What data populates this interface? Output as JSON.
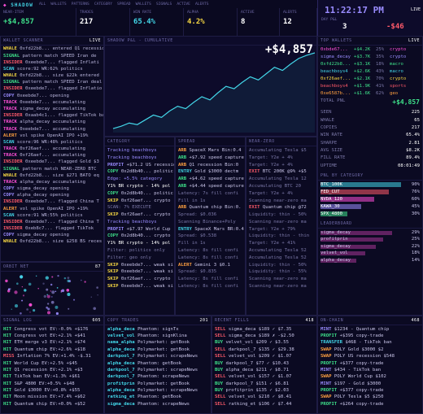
{
  "topbar": {
    "title": "SHADOW",
    "tabs": [
      "ALL",
      "WALLETS",
      "PATTERNS",
      "CATEGORY",
      "SPREAD",
      "WALLETS",
      "SIGNALS",
      "ACTIVE",
      "ALERTS"
    ],
    "stats": [
      {
        "label": "NEAR-ITEM",
        "value": "+$4,857",
        "cls": "g"
      },
      {
        "label": "TRADES",
        "value": "217",
        "cls": "w"
      },
      {
        "label": "WIN RATE",
        "value": "65.4%",
        "cls": "c"
      },
      {
        "label": "ALPHA",
        "value": "4.2%",
        "cls": "y"
      },
      {
        "label": "ACTIVE",
        "value": "8",
        "cls": "w"
      },
      {
        "label": "ALERTS",
        "value": "12",
        "cls": "w"
      }
    ],
    "clock": "11:22:17 PM",
    "clock_tag": "LIVE",
    "daylabel": "DAY P&L",
    "day_count": "3",
    "day_value": "-$46"
  },
  "feed": {
    "title": "WALLET SCANNER",
    "tag": "LIVE",
    "rows": [
      [
        "WHALE",
        "y",
        "0xfd22b8... entered Q1 recession"
      ],
      [
        "SIGNAL",
        "g",
        "pattern match SPEED Iran de"
      ],
      [
        "INSIDER",
        "r",
        "0xeebde7... flagged Inflati"
      ],
      [
        "SCAN",
        "c",
        "score:92 WR:62% politics"
      ],
      [
        "WHALE",
        "y",
        "0xfd22b8... size $22k entered"
      ],
      [
        "SIGNAL",
        "g",
        "pattern match SPEED Iran deal"
      ],
      [
        "INSIDER",
        "r",
        "0xeebde7... flagged Inflatio"
      ],
      [
        "COPY",
        "p",
        "0xeebde7... opening"
      ],
      [
        "TRACK",
        "m",
        "0xeebde7... accumulating"
      ],
      [
        "TRACK",
        "m",
        "sigma_decay accumulating"
      ],
      [
        "INSIDER",
        "r",
        "0xaab4c1... flagged TikTok ban"
      ],
      [
        "TRACK",
        "m",
        "alpha_decay accumulating"
      ],
      [
        "TRACK",
        "m",
        "0xeebde7... accumulating"
      ],
      [
        "ALERT",
        "o",
        "vol spike OpenAI IPO +19%"
      ],
      [
        "SCAN",
        "c",
        "score:96 WR:48% politics"
      ],
      [
        "TRACK",
        "m",
        "0xf26aef... accumulating"
      ],
      [
        "TRACK",
        "m",
        "0xf26aef... accumulating"
      ],
      [
        "INSIDER",
        "r",
        "0xeebde7... flagged Gold $3"
      ],
      [
        "SIGNAL",
        "g",
        "pattern match NEAR-ZERO BTC"
      ],
      [
        "WHALE",
        "y",
        "0xfd22b8... size $271 BATO eq"
      ],
      [
        "TRACK",
        "m",
        "alpha_decay accumulating"
      ],
      [
        "COPY",
        "p",
        "sigma_decay opening"
      ],
      [
        "COPY",
        "p",
        "alpha_decay opening"
      ],
      [
        "INSIDER",
        "r",
        "0xeebde7... flagged China T"
      ],
      [
        "ALERT",
        "o",
        "vol spike OpenAI IPO +19%"
      ],
      [
        "SCAN",
        "c",
        "score:91 WR:55% politics"
      ],
      [
        "INSIDER",
        "r",
        "0xeebde7... flagged China T"
      ],
      [
        "INSIDER",
        "r",
        "0xeb8c7... flagged TikTok"
      ],
      [
        "COPY",
        "p",
        "sigma_decay opening"
      ],
      [
        "WHALE",
        "y",
        "0xfd22b8... size $258 BS reces"
      ]
    ]
  },
  "chart": {
    "title": "SHADOW P&L - CUMULATIVE",
    "value": "+$4,857",
    "points": [
      5,
      8,
      12,
      10,
      16,
      22,
      19,
      27,
      33,
      30,
      38,
      45,
      41,
      50,
      58,
      55,
      63,
      70,
      66,
      74,
      82,
      78,
      86,
      93,
      97,
      100
    ]
  },
  "cols": [
    {
      "title": "CATEGORY",
      "rows": [
        [
          "",
          "Tracking beachboys",
          "spk"
        ],
        [
          "",
          "Tracking beachboys",
          "spk"
        ],
        [
          "PROFIT",
          "+$71.2 US recession",
          "p"
        ],
        [
          "COPY",
          "0x2d8b40... politic",
          "g"
        ],
        [
          "",
          "Edge: +5.5% category",
          "sp"
        ],
        [
          "",
          "Y1% BR crypto - 14% pol",
          "w"
        ],
        [
          "COPY",
          "0x2d8b40... politic",
          "g"
        ],
        [
          "SKIP",
          "0xf26aef... crypto",
          "y"
        ],
        [
          "",
          "SCAN: 7% EXECUTE",
          "d"
        ],
        [
          "SKIP",
          "0xf26aef... crypto",
          "y"
        ],
        [
          "",
          "Tracking beachboys",
          "spk"
        ],
        [
          "PROFIT",
          "+$7.97 World Cup",
          "p"
        ],
        [
          "COPY",
          "0x2d8b40... crypto",
          "g"
        ],
        [
          "",
          "Y1% BR crypto - 14% pol",
          "w"
        ],
        [
          "",
          "Filter: politics only",
          "d"
        ],
        [
          "",
          "Filter: geo only",
          "d"
        ],
        [
          "SKIP",
          "0xeebde7... weak si",
          "y"
        ],
        [
          "SKIP",
          "0xeebde7... weak si",
          "y"
        ],
        [
          "SKIP",
          "0xf26aef... crypto",
          "y"
        ],
        [
          "SKIP",
          "0xeebde7... weak si",
          "y"
        ]
      ]
    },
    {
      "title": "SPREAD",
      "rows": [
        [
          "ARB",
          "SpaceX Mars Bin:0.4",
          "o"
        ],
        [
          "ARB",
          "+$7.92 speed capture",
          "g"
        ],
        [
          "ARB",
          "Q1 recession Bin:0",
          "o"
        ],
        [
          "ENTRY",
          "Gold $3000 dectm",
          "c"
        ],
        [
          "ARB",
          "+$4.62 speed capture",
          "g"
        ],
        [
          "ARB",
          "+$4.44 speed capture",
          "g"
        ],
        [
          "",
          "Latency: 7s fill confi",
          "d"
        ],
        [
          "",
          "Fill in 1s",
          "d"
        ],
        [
          "ARB",
          "Quantum chip Bin:0.",
          "o"
        ],
        [
          "",
          "Spread: $0.036",
          "d"
        ],
        [
          "",
          "Scanning Binance+Poly",
          "d"
        ],
        [
          "ENTRY",
          "SpaceX Mars BR:0.4",
          "c"
        ],
        [
          "",
          "Spread: $0.538",
          "d"
        ],
        [
          "",
          "Fill in 1s",
          "d"
        ],
        [
          "",
          "Latency: 8s fill confi",
          "d"
        ],
        [
          "",
          "Latency: 8s fill confi",
          "d"
        ],
        [
          "ALERT",
          "Gemini 3 $0.1",
          "o"
        ],
        [
          "",
          "Spread: $0.835",
          "d"
        ],
        [
          "",
          "Latency: 8s fill confi",
          "d"
        ],
        [
          "",
          "Latency: 8s fill confi",
          "d"
        ]
      ]
    },
    {
      "title": "NEAR-ZERO",
      "rows": [
        [
          "",
          "Accumulating Tesla $5",
          "d"
        ],
        [
          "",
          "Target: Y2e + 4%",
          "d"
        ],
        [
          "",
          "Target: Y2e + 4%",
          "d"
        ],
        [
          "EXIT",
          "BTC 200K @9% +$5",
          "r"
        ],
        [
          "",
          "Accumulating Tesla 12",
          "d"
        ],
        [
          "",
          "Accumulating BTC 20",
          "d"
        ],
        [
          "",
          "Target: Y2e + 4%",
          "d"
        ],
        [
          "",
          "Scanning near-zero ma",
          "d"
        ],
        [
          "EXIT",
          "Quantum chip @72",
          "r"
        ],
        [
          "",
          "Liquidity: thin - 50%",
          "d"
        ],
        [
          "",
          "Scanning near-zero ma",
          "d"
        ],
        [
          "",
          "Target: Y2e + 79%",
          "d"
        ],
        [
          "",
          "Liquidity: thin - thin",
          "d"
        ],
        [
          "",
          "Target: Y2e + 41%",
          "d"
        ],
        [
          "",
          "Accumulating Tesla 52",
          "d"
        ],
        [
          "",
          "Accumulating Tesla 52",
          "d"
        ],
        [
          "",
          "Liquidity: thin - 50%",
          "d"
        ],
        [
          "",
          "Liquidity: thin - 55%",
          "d"
        ],
        [
          "",
          "Scanning near-zero ma",
          "d"
        ],
        [
          "",
          "Scanning near-zero ma",
          "d"
        ]
      ]
    }
  ],
  "rp": {
    "title": "TOP WALLETS",
    "tag": "LIVE",
    "wallets": [
      [
        "0xbde67...",
        "+$4.2K",
        "25%",
        "crypto",
        "#ff4fd8"
      ],
      [
        "sigma_decay",
        "+$3.7K",
        "35%",
        "crypto",
        "#9a8cff"
      ],
      [
        "0xfd22b8...",
        "+$3.1K",
        "18%",
        "macro",
        "#3ee08a"
      ],
      [
        "beachboys4",
        "+$2.6K",
        "43%",
        "macro",
        "#43d6e8"
      ],
      [
        "0xf26aef...",
        "+$2.1K",
        "70%",
        "crypto",
        "#f6d743"
      ],
      [
        "beachboys4",
        "+$1.9K",
        "41%",
        "sports",
        "#ff5a6a"
      ],
      [
        "0xe6587b...",
        "+$1.6K",
        "62%",
        "geo",
        "#ffa040"
      ]
    ],
    "total_label": "TOTAL PNL",
    "total": "+$4,857",
    "stats": [
      [
        "SEEN",
        "225"
      ],
      [
        "WHALE",
        "65"
      ],
      [
        "COPIES",
        "217"
      ],
      [
        "WIN RATE",
        "65.4%"
      ],
      [
        "SHARPE",
        "2.81"
      ],
      [
        "AVG SIZE",
        "$8.2K"
      ],
      [
        "FILL RATE",
        "89.4%"
      ],
      [
        "UPTIME",
        "08:01:49"
      ]
    ],
    "cat_title": "PNL BY CATEGORY",
    "cats": [
      [
        "BTC_100K",
        "90%",
        "0.90",
        "#43d6e8"
      ],
      [
        "FED_CUT",
        "76%",
        "0.76",
        "#ff5a6a"
      ],
      [
        "NVDA_120",
        "60%",
        "0.60",
        "#ff4fd8"
      ],
      [
        "KAWA_30",
        "45%",
        "0.45",
        "#9a8cff"
      ],
      [
        "SPX_4800",
        "30%",
        "0.30",
        "#3ee08a"
      ]
    ],
    "lead_title": "LEADERBOARD",
    "leaders": [
      [
        "sigma_decay",
        "29%",
        "0.80"
      ],
      [
        "profitprin",
        "25%",
        "0.70"
      ],
      [
        "sigma_decay",
        "22%",
        "0.62"
      ],
      [
        "velvet_vol",
        "18%",
        "0.50"
      ],
      [
        "alpha_decay",
        "14%",
        "0.40"
      ]
    ]
  },
  "orb": {
    "title": "ORBIT NET",
    "tag": "87"
  },
  "bottom": [
    {
      "title": "SIGNAL LOG",
      "tag": "605",
      "rows": [
        [
          "HIT",
          "Congress vot EV:-0.0% +$176",
          "g"
        ],
        [
          "HIT",
          "Congress vot EV:+2.1% +$41",
          "g"
        ],
        [
          "HIT",
          "ETH merge v3 EV:+2.1% +$74",
          "g"
        ],
        [
          "HIT",
          "Quantum chip EV:+2.6% +$18",
          "g"
        ],
        [
          "MISS",
          "Inflation 7% EV:+1.4% -$.31",
          "r"
        ],
        [
          "HIT",
          "World Cup EV:+2.5% +$45",
          "g"
        ],
        [
          "HIT",
          "Q1 recession EV:+2.1% +$3",
          "g"
        ],
        [
          "HIT",
          "TikTok ban EV:+1.3% +$61",
          "g"
        ],
        [
          "HIT",
          "S&P 4800 EV:+0.5% +$48",
          "g"
        ],
        [
          "HIT",
          "Gold $3000 EV:+0.8% +$55",
          "g"
        ],
        [
          "HIT",
          "Moon mission EV:+7.4% +$62",
          "g"
        ],
        [
          "HIT",
          "Quantum chip EV:+0.0% +$52",
          "g"
        ]
      ]
    },
    {
      "title": "COPY TRADES",
      "tag": "201",
      "rows": [
        [
          "alpha_deca",
          "Phantom: signTx",
          "c"
        ],
        [
          "velvet_vol",
          "Phantom: signKlina",
          "c"
        ],
        [
          "nama_alpha",
          "Polymarket: getBook",
          "c"
        ],
        [
          "alpha_deca",
          "Polymarket: getBook",
          "c"
        ],
        [
          "darkpool_7",
          "Polymarket: scrapeNews",
          "c"
        ],
        [
          "alpha_deca",
          "Phantom: getBook",
          "c"
        ],
        [
          "darkpool_7",
          "Polymarket: scrapeNews",
          "c"
        ],
        [
          "darkpool_7",
          "Phantom: scrapeNews",
          "c"
        ],
        [
          "profitprin",
          "Polymarket: getBook",
          "c"
        ],
        [
          "alpha_deca",
          "Polymarket: scrapeNews",
          "c"
        ],
        [
          "ratking_et",
          "Phantom: getBook",
          "c"
        ],
        [
          "sigma_deca",
          "Phantom: scrapeNews",
          "c"
        ]
      ]
    },
    {
      "title": "RECENT FILLS",
      "tag": "418",
      "rows": [
        [
          "SELL",
          "sigma_deca $189 ✓ $7.35",
          "r"
        ],
        [
          "SELL",
          "sigma_deca $189 ✗ -$2.50",
          "r"
        ],
        [
          "BUY",
          "velvet_vol $209 ✓ $3.55",
          "g"
        ],
        [
          "SELL",
          "darkpool_7 $135 ✓ $29.38",
          "r"
        ],
        [
          "SELL",
          "velvet_vol $209 ✓ $1.07",
          "r"
        ],
        [
          "BUY",
          "darkpool_7 $77 ✓ $10.43",
          "g"
        ],
        [
          "BUY",
          "alpha_deca $211 ✓ $8.71",
          "g"
        ],
        [
          "SELL",
          "velvet_vol $157 ✓ $1.07",
          "r"
        ],
        [
          "BUY",
          "darkpool_7 $151 ✓ $6.81",
          "g"
        ],
        [
          "BUY",
          "profitprin $135 ✓ $2.03",
          "g"
        ],
        [
          "SELL",
          "velvet_vol $210 ✓ $0.41",
          "r"
        ],
        [
          "SELL",
          "ratking_et $106 ✓ $7.44",
          "r"
        ]
      ]
    },
    {
      "title": "ON-CHAIN",
      "tag": "468",
      "rows": [
        [
          "MINT",
          "$1234 - Quantum chip",
          "p"
        ],
        [
          "PROFIT",
          "+$395 copy-trade",
          "g"
        ],
        [
          "TRANSFER",
          "$468 - TikTok ban",
          "c"
        ],
        [
          "SWAP",
          "POLY Gold $3000 $2",
          "o"
        ],
        [
          "SWAP",
          "POLY US recession $548",
          "o"
        ],
        [
          "PROFIT",
          "+$377 copy-trade",
          "g"
        ],
        [
          "MINT",
          "$434 - TikTok ban",
          "p"
        ],
        [
          "SWAP",
          "POLY World Cup $102",
          "o"
        ],
        [
          "MINT",
          "$197 - Gold $3000",
          "p"
        ],
        [
          "PROFIT",
          "+$377 copy-trade",
          "g"
        ],
        [
          "SWAP",
          "POLY Tesla $5 $250",
          "o"
        ],
        [
          "PROFIT",
          "+$264 copy-trade",
          "g"
        ]
      ]
    }
  ]
}
